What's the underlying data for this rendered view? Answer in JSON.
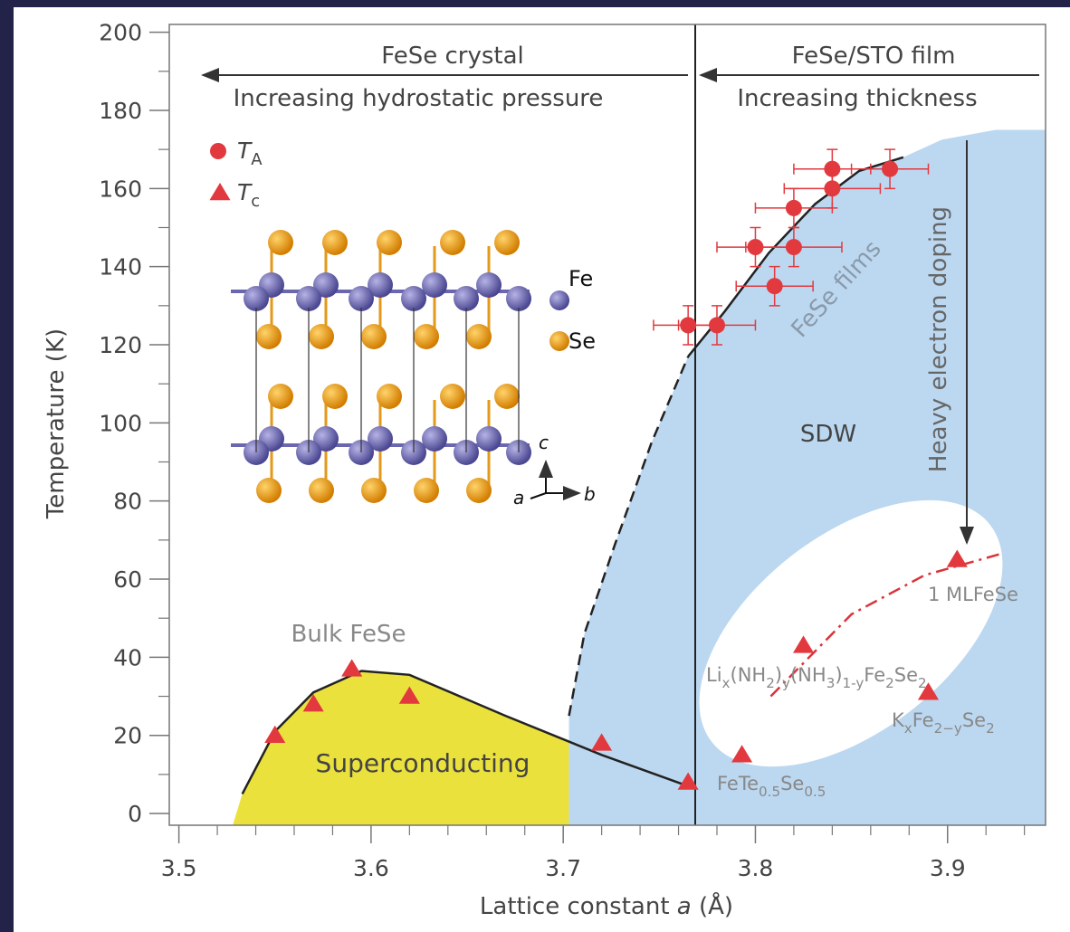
{
  "chart_data": {
    "type": "scatter",
    "xlabel_parts": [
      "Lattice constant ",
      "a",
      " (Å)"
    ],
    "ylabel": "Temperature (K)",
    "xlim": [
      3.495,
      3.951
    ],
    "ylim": [
      -3,
      202
    ],
    "xticks": [
      3.5,
      3.6,
      3.7,
      3.8,
      3.9
    ],
    "yticks": [
      0,
      20,
      40,
      60,
      80,
      100,
      120,
      140,
      160,
      180,
      200
    ],
    "x_minor_ticks": [
      3.52,
      3.54,
      3.56,
      3.58,
      3.62,
      3.64,
      3.66,
      3.68,
      3.72,
      3.74,
      3.76,
      3.78,
      3.82,
      3.84,
      3.86,
      3.88,
      3.92,
      3.94
    ],
    "y_minor_ticks": [
      10,
      30,
      50,
      70,
      90,
      110,
      130,
      150,
      170,
      190
    ],
    "series": [
      {
        "name_parts": [
          "T",
          "A"
        ],
        "marker": "circle",
        "color": "#e2393f",
        "x": [
          3.765,
          3.78,
          3.8,
          3.81,
          3.82,
          3.82,
          3.84,
          3.84,
          3.87
        ],
        "y": [
          125,
          125,
          145,
          135,
          155,
          145,
          165,
          160,
          165
        ],
        "x_err": [
          0.018,
          0.02,
          0.02,
          0.02,
          0.02,
          0.025,
          0.02,
          0.025,
          0.02
        ],
        "y_err": [
          5,
          5,
          5,
          5,
          5,
          5,
          5,
          5,
          5
        ]
      },
      {
        "name_parts": [
          "T",
          "c"
        ],
        "marker": "triangle",
        "color": "#e2393f",
        "x": [
          3.55,
          3.57,
          3.59,
          3.62,
          3.72,
          3.765,
          3.793,
          3.825,
          3.89,
          3.905
        ],
        "y": [
          20,
          28,
          37,
          30,
          18,
          8,
          15,
          43,
          31,
          65
        ]
      }
    ],
    "regions": [
      {
        "label": "Superconducting",
        "color": "#ebe13d",
        "x": [
          3.528,
          3.533,
          3.55,
          3.57,
          3.595,
          3.62,
          3.67,
          3.72,
          3.765,
          3.765
        ],
        "y": [
          -3,
          5,
          21,
          31,
          36.5,
          35.5,
          25,
          15,
          7,
          -3
        ]
      },
      {
        "label": "SDW",
        "color": "#bcd8f0",
        "x": [
          3.703,
          3.703,
          3.711,
          3.727,
          3.746,
          3.765,
          3.784,
          3.807,
          3.831,
          3.854,
          3.877,
          3.897,
          3.925,
          3.951,
          3.951
        ],
        "y": [
          -3,
          25,
          46,
          69,
          95,
          117,
          128.5,
          143.5,
          156,
          164.5,
          168,
          172.5,
          175,
          175,
          -3
        ]
      }
    ],
    "curves": [
      {
        "style": "solid",
        "color": "#222222",
        "x": [
          3.533,
          3.55,
          3.57,
          3.595,
          3.62,
          3.67,
          3.72,
          3.765
        ],
        "y": [
          5,
          21,
          31,
          36.5,
          35.5,
          25,
          15,
          7
        ]
      },
      {
        "style": "dashed",
        "color": "#222222",
        "x": [
          3.703,
          3.711,
          3.727,
          3.746,
          3.765
        ],
        "y": [
          25,
          46,
          69,
          95,
          117
        ]
      },
      {
        "style": "solid",
        "color": "#222222",
        "x": [
          3.765,
          3.784,
          3.807,
          3.831,
          3.854,
          3.877
        ],
        "y": [
          117,
          128.5,
          143.5,
          156,
          164.5,
          168
        ]
      },
      {
        "style": "dashdot",
        "color": "#d9343a",
        "x": [
          3.808,
          3.85,
          3.888,
          3.928
        ],
        "y": [
          30,
          51,
          61,
          66.5
        ]
      }
    ],
    "annotations": {
      "crystal": "FeSe crystal",
      "pressure": "Increasing hydrostatic pressure",
      "film": "FeSe/STO film",
      "thickness": "Increasing thickness",
      "doping": "Heavy electron doping",
      "films": "FeSe films",
      "bulk": "Bulk FeSe",
      "monolayer": "1 MLFeSe",
      "li_compound": [
        "Li",
        "x",
        "(NH",
        "2",
        ")",
        "y",
        "(NH",
        "3",
        ")",
        "1-y",
        "Fe",
        "2",
        "Se",
        "2"
      ],
      "k_compound": [
        "K",
        "x",
        "Fe",
        "2−y",
        "Se",
        "2"
      ],
      "fete": [
        "FeTe",
        "0.5",
        "Se",
        "0.5"
      ]
    },
    "structure": {
      "fe": "Fe",
      "se": "Se",
      "axis_c": "c",
      "axis_a": "a",
      "axis_b": "b"
    }
  }
}
